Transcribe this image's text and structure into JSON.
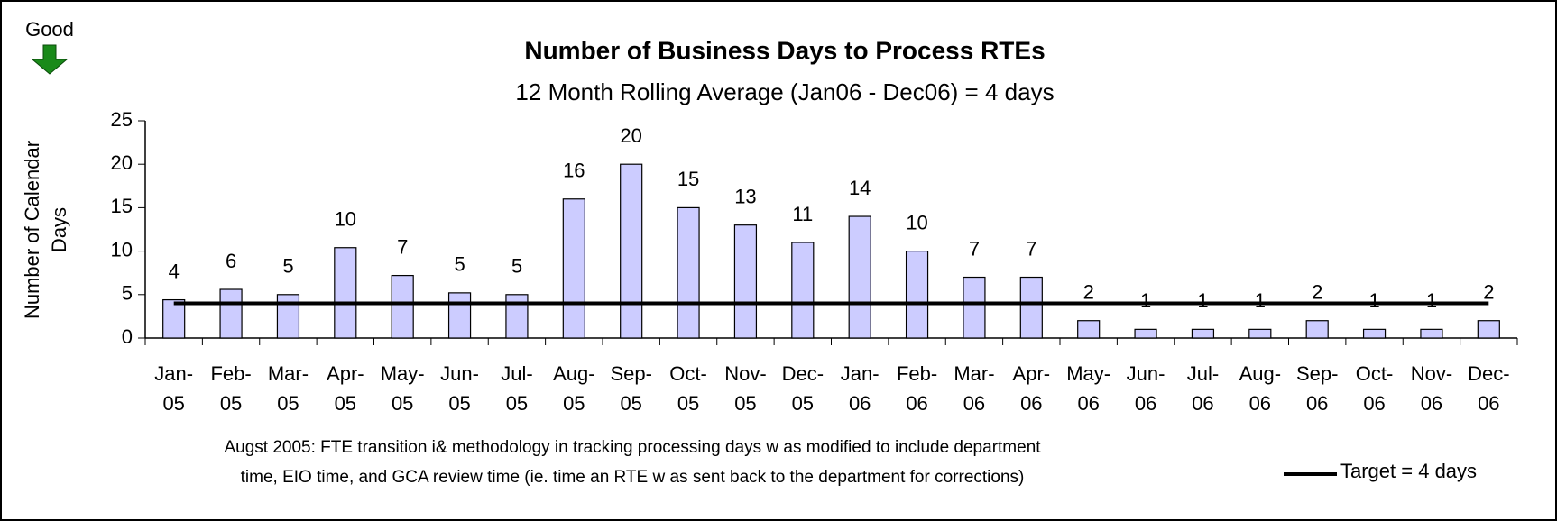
{
  "chart_data": {
    "type": "bar",
    "title": "Number of Business Days to Process RTEs",
    "subtitle": "12 Month Rolling Average (Jan06 - Dec06) = 4 days",
    "y_label": "Number of Calendar Days",
    "corner_annotation": "Good",
    "note": [
      "Augst 2005: FTE transition i& methodology in tracking processing days w as modified to include department",
      "time, EIO time, and GCA review  time (ie. time an RTE w as sent back to the department for corrections)"
    ],
    "categories": [
      "Jan-05",
      "Feb-05",
      "Mar-05",
      "Apr-05",
      "May-05",
      "Jun-05",
      "Jul-05",
      "Aug-05",
      "Sep-05",
      "Oct-05",
      "Nov-05",
      "Dec-05",
      "Jan-06",
      "Feb-06",
      "Mar-06",
      "Apr-06",
      "May-06",
      "Jun-06",
      "Jul-06",
      "Aug-06",
      "Sep-06",
      "Oct-06",
      "Nov-06",
      "Dec-06"
    ],
    "values": [
      4.4,
      5.6,
      5.0,
      10.4,
      7.2,
      5.2,
      5.0,
      16,
      20,
      15,
      13,
      11,
      14,
      10,
      7,
      7,
      2,
      1,
      1,
      1,
      2,
      1,
      1,
      2
    ],
    "value_labels": [
      "4",
      "6",
      "5",
      "10",
      "7",
      "5",
      "5",
      "16",
      "20",
      "15",
      "13",
      "11",
      "14",
      "10",
      "7",
      "7",
      "2",
      "1",
      "1",
      "1",
      "2",
      "1",
      "1",
      "2"
    ],
    "color": "#ccccff",
    "target": {
      "name": "Target = 4 days",
      "value": 4,
      "color": "#000000"
    },
    "ylim": [
      0,
      25
    ],
    "yticks": [
      0,
      5,
      10,
      15,
      20,
      25
    ]
  }
}
